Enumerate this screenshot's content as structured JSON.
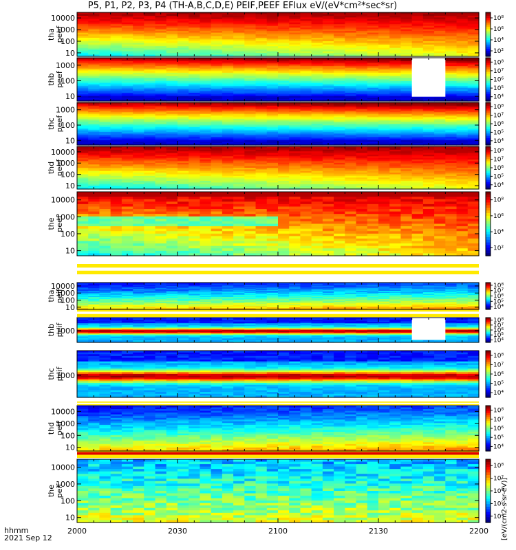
{
  "title": "P5, P1, P2, P3, P4 (TH-A,B,C,D,E) PEIF,PEEF EFlux eV/(eV*cm²*sec*sr)",
  "footer": {
    "time_label": "hhmm",
    "date_label": "2021 Sep 12"
  },
  "colorbar_unit": "[eV/(cm2-s-sr-eV)]",
  "colors": {
    "background": "#ffffff",
    "plot_border": "#000000"
  },
  "chart_data": [
    {
      "type": "heatmap",
      "name_lines": [
        "tha",
        "peef"
      ],
      "yscale": "log",
      "yrange": [
        5,
        30000
      ],
      "yticks": [
        {
          "v": 10,
          "label": "10"
        },
        {
          "v": 100,
          "label": "100"
        },
        {
          "v": 1000,
          "label": "1000"
        },
        {
          "v": 10000,
          "label": "10000"
        }
      ],
      "colorbar_ticks": [
        "10²",
        "10⁴",
        "10⁶",
        "10⁸"
      ],
      "theme": "electron",
      "gaps": []
    },
    {
      "type": "heatmap",
      "name_lines": [
        "thb",
        "peef"
      ],
      "yscale": "log",
      "yrange": [
        5,
        3000
      ],
      "yticks": [
        {
          "v": 10,
          "label": "10"
        },
        {
          "v": 100,
          "label": "100"
        },
        {
          "v": 1000,
          "label": "1000"
        }
      ],
      "colorbar_ticks": [
        "10⁴",
        "10⁵",
        "10⁶",
        "10⁷",
        "10⁸"
      ],
      "theme": "electron-high",
      "gaps": [
        [
          2140,
          2150
        ]
      ]
    },
    {
      "type": "heatmap",
      "name_lines": [
        "thc",
        "peef"
      ],
      "yscale": "log",
      "yrange": [
        5,
        3000
      ],
      "yticks": [
        {
          "v": 10,
          "label": "10"
        },
        {
          "v": 100,
          "label": "100"
        },
        {
          "v": 1000,
          "label": "1000"
        }
      ],
      "colorbar_ticks": [
        "10⁴",
        "10⁵",
        "10⁶",
        "10⁷",
        "10⁸"
      ],
      "theme": "electron-high",
      "gaps": []
    },
    {
      "type": "heatmap",
      "name_lines": [
        "thd",
        "peef"
      ],
      "yscale": "log",
      "yrange": [
        5,
        30000
      ],
      "yticks": [
        {
          "v": 10,
          "label": "10"
        },
        {
          "v": 100,
          "label": "100"
        },
        {
          "v": 1000,
          "label": "1000"
        },
        {
          "v": 10000,
          "label": "10000"
        }
      ],
      "colorbar_ticks": [
        "10⁴",
        "10⁵",
        "10⁶",
        "10⁷",
        "10⁸"
      ],
      "theme": "electron",
      "gaps": []
    },
    {
      "type": "heatmap",
      "name_lines": [
        "the",
        "peef"
      ],
      "yscale": "log",
      "yrange": [
        5,
        30000
      ],
      "yticks": [
        {
          "v": 10,
          "label": "10"
        },
        {
          "v": 100,
          "label": "100"
        },
        {
          "v": 1000,
          "label": "1000"
        },
        {
          "v": 10000,
          "label": "10000"
        }
      ],
      "colorbar_ticks": [
        "10²",
        "10⁴",
        "10⁶",
        "10⁸"
      ],
      "theme": "electron-noisy",
      "gaps": []
    },
    {
      "type": "heatmap",
      "name_lines": [
        "tha",
        "peif"
      ],
      "yscale": "log",
      "yrange": [
        5,
        30000
      ],
      "yticks": [
        {
          "v": 10,
          "label": "10"
        },
        {
          "v": 100,
          "label": "100"
        },
        {
          "v": 1000,
          "label": "1000"
        },
        {
          "v": 10000,
          "label": "10000"
        }
      ],
      "colorbar_ticks": [
        "10⁴",
        "10⁵",
        "10⁶",
        "10⁷",
        "10⁸"
      ],
      "theme": "ion",
      "gaps": []
    },
    {
      "type": "heatmap",
      "name_lines": [
        "thb",
        "peif"
      ],
      "yscale": "log",
      "yrange": [
        200,
        6000
      ],
      "yticks": [
        {
          "v": 1000,
          "label": "1000"
        }
      ],
      "colorbar_ticks": [
        "10⁴",
        "10⁵",
        "10⁶",
        "10⁷",
        "10⁸"
      ],
      "theme": "ion-band",
      "gaps": [
        [
          2140,
          2150
        ]
      ]
    },
    {
      "type": "heatmap",
      "name_lines": [
        "thc",
        "peif"
      ],
      "yscale": "log",
      "yrange": [
        200,
        6000
      ],
      "yticks": [
        {
          "v": 1000,
          "label": "1000"
        }
      ],
      "colorbar_ticks": [
        "10⁴",
        "10⁵",
        "10⁶",
        "10⁷",
        "10⁸"
      ],
      "theme": "ion-band",
      "gaps": []
    },
    {
      "type": "heatmap",
      "name_lines": [
        "thd",
        "peif"
      ],
      "yscale": "log",
      "yrange": [
        5,
        30000
      ],
      "yticks": [
        {
          "v": 10,
          "label": "10"
        },
        {
          "v": 100,
          "label": "100"
        },
        {
          "v": 1000,
          "label": "1000"
        },
        {
          "v": 10000,
          "label": "10000"
        }
      ],
      "colorbar_ticks": [
        "10⁴",
        "10⁵",
        "10⁶",
        "10⁷",
        "10⁸"
      ],
      "theme": "ion",
      "gaps": []
    },
    {
      "type": "heatmap",
      "name_lines": [
        "the",
        "peif"
      ],
      "yscale": "log",
      "yrange": [
        5,
        30000
      ],
      "yticks": [
        {
          "v": 10,
          "label": "10"
        },
        {
          "v": 100,
          "label": "100"
        },
        {
          "v": 1000,
          "label": "1000"
        },
        {
          "v": 10000,
          "label": "10000"
        }
      ],
      "colorbar_ticks": [
        "10⁴",
        "10⁵",
        "10⁶",
        "10⁷",
        "10⁸"
      ],
      "theme": "ion-noisy",
      "gaps": []
    }
  ],
  "x_axis": {
    "ticks": [
      "2000",
      "2030",
      "2100",
      "2130",
      "2200"
    ],
    "range_minutes": [
      1200,
      1320
    ]
  }
}
